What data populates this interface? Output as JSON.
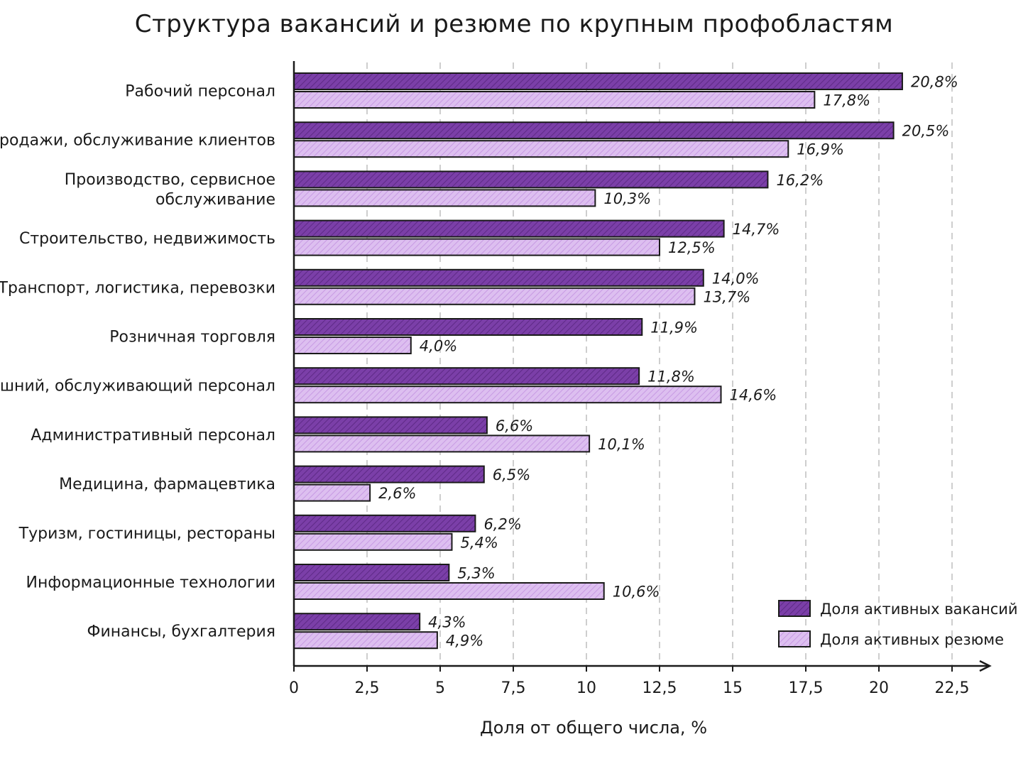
{
  "chart_data": {
    "type": "bar",
    "orientation": "horizontal",
    "title": "Структура вакансий и резюме по крупным профобластям",
    "xlabel": "Доля от общего числа, %",
    "ylabel": "",
    "xlim": [
      0,
      22.5
    ],
    "xticks": [
      0,
      2.5,
      5,
      7.5,
      10,
      12.5,
      15,
      17.5,
      20,
      22.5
    ],
    "xtick_labels": [
      "0",
      "2,5",
      "5",
      "7,5",
      "10",
      "12,5",
      "15",
      "17,5",
      "20",
      "22,5"
    ],
    "grid": "vertical dashed",
    "legend_position": "bottom-right",
    "categories": [
      [
        "Рабочий персонал"
      ],
      [
        "Продажи, обслуживание клиентов"
      ],
      [
        "Производство, сервисное",
        "обслуживание"
      ],
      [
        "Строительство, недвижимость"
      ],
      [
        "Транспорт, логистика, перевозки"
      ],
      [
        "Розничная торговля"
      ],
      [
        "Домашний, обслуживающий персонал"
      ],
      [
        "Административный персонал"
      ],
      [
        "Медицина, фармацевтика"
      ],
      [
        "Туризм, гостиницы, рестораны"
      ],
      [
        "Информационные технологии"
      ],
      [
        "Финансы, бухгалтерия"
      ]
    ],
    "series": [
      {
        "name": "Доля активных вакансий",
        "color": "#7b3fa8",
        "values": [
          20.8,
          20.5,
          16.2,
          14.7,
          14.0,
          11.9,
          11.8,
          6.6,
          6.5,
          6.2,
          5.3,
          4.3
        ],
        "labels": [
          "20,8%",
          "20,5%",
          "16,2%",
          "14,7%",
          "14,0%",
          "11,9%",
          "11,8%",
          "6,6%",
          "6,5%",
          "6,2%",
          "5,3%",
          "4,3%"
        ]
      },
      {
        "name": "Доля активных резюме",
        "color": "#d9b8ef",
        "values": [
          17.8,
          16.9,
          10.3,
          12.5,
          13.7,
          4.0,
          14.6,
          10.1,
          2.6,
          5.4,
          10.6,
          4.9
        ],
        "labels": [
          "17,8%",
          "16,9%",
          "10,3%",
          "12,5%",
          "13,7%",
          "4,0%",
          "14,6%",
          "10,1%",
          "2,6%",
          "5,4%",
          "10,6%",
          "4,9%"
        ]
      }
    ]
  }
}
